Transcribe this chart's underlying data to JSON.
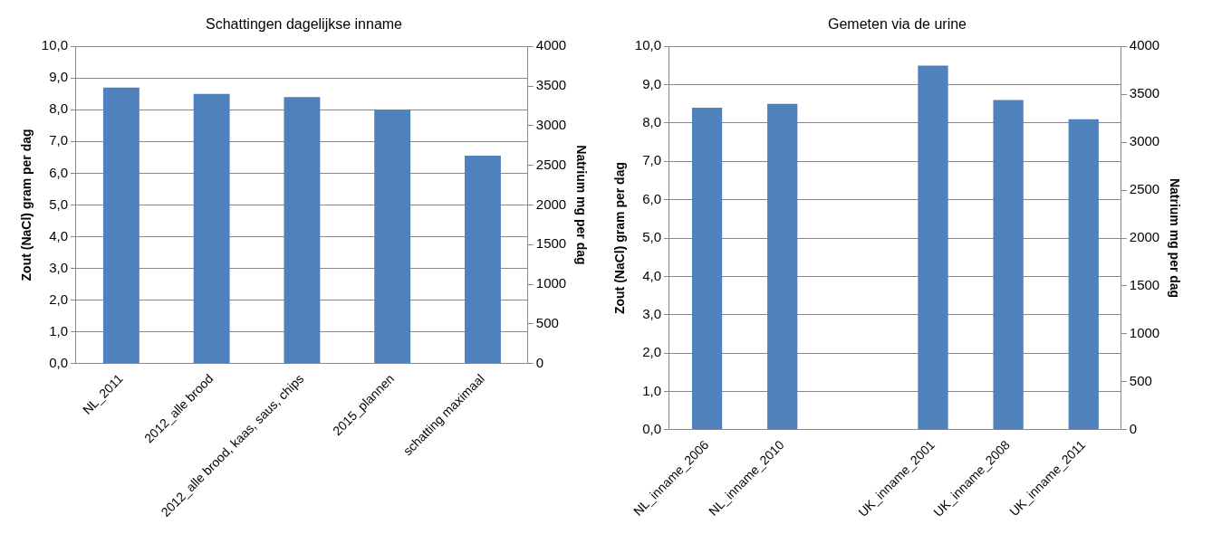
{
  "chart_data": [
    {
      "type": "bar",
      "title": "Schattingen dagelijkse inname",
      "ylabel": "Zout (NaCl) gram per dag",
      "y2label": "Natrium mg per dag",
      "categories": [
        "NL_2011",
        "2012_alle brood",
        "2012_alle brood, kaas, saus, chips",
        "2015_plannen",
        "schatting maximaal"
      ],
      "series": [
        {
          "color": "#4f81bd",
          "values": [
            8.7,
            8.5,
            8.4,
            8.0,
            6.55
          ]
        }
      ],
      "ylim": [
        0,
        10
      ],
      "yticks": [
        {
          "value": 0,
          "label": "0,0"
        },
        {
          "value": 1,
          "label": "1,0"
        },
        {
          "value": 2,
          "label": "2,0"
        },
        {
          "value": 3,
          "label": "3,0"
        },
        {
          "value": 4,
          "label": "4,0"
        },
        {
          "value": 5,
          "label": "5,0"
        },
        {
          "value": 6,
          "label": "6,0"
        },
        {
          "value": 7,
          "label": "7,0"
        },
        {
          "value": 8,
          "label": "8,0"
        },
        {
          "value": 9,
          "label": "9,0"
        },
        {
          "value": 10,
          "label": "10,0"
        }
      ],
      "y2lim": [
        0,
        4000
      ],
      "y2ticks": [
        0,
        500,
        1000,
        1500,
        2000,
        2500,
        3000,
        3500,
        4000
      ],
      "grid": "y",
      "legend": false
    },
    {
      "type": "bar",
      "title": "Gemeten via de urine",
      "ylabel": "Zout (NaCl) gram per dag",
      "y2label": "Natrium mg per dag",
      "categories": [
        "NL_inname_2006",
        "NL_inname_2010",
        null,
        "UK_inname_2001",
        "UK_inname_2008",
        "UK_inname_2011"
      ],
      "series": [
        {
          "color": "#4f81bd",
          "values": [
            8.4,
            8.5,
            null,
            9.5,
            8.6,
            8.1
          ]
        }
      ],
      "ylim": [
        0,
        10
      ],
      "yticks": [
        {
          "value": 0,
          "label": "0,0"
        },
        {
          "value": 1,
          "label": "1,0"
        },
        {
          "value": 2,
          "label": "2,0"
        },
        {
          "value": 3,
          "label": "3,0"
        },
        {
          "value": 4,
          "label": "4,0"
        },
        {
          "value": 5,
          "label": "5,0"
        },
        {
          "value": 6,
          "label": "6,0"
        },
        {
          "value": 7,
          "label": "7,0"
        },
        {
          "value": 8,
          "label": "8,0"
        },
        {
          "value": 9,
          "label": "9,0"
        },
        {
          "value": 10,
          "label": "10,0"
        }
      ],
      "y2lim": [
        0,
        4000
      ],
      "y2ticks": [
        0,
        500,
        1000,
        1500,
        2000,
        2500,
        3000,
        3500,
        4000
      ],
      "grid": "y",
      "legend": false
    }
  ]
}
